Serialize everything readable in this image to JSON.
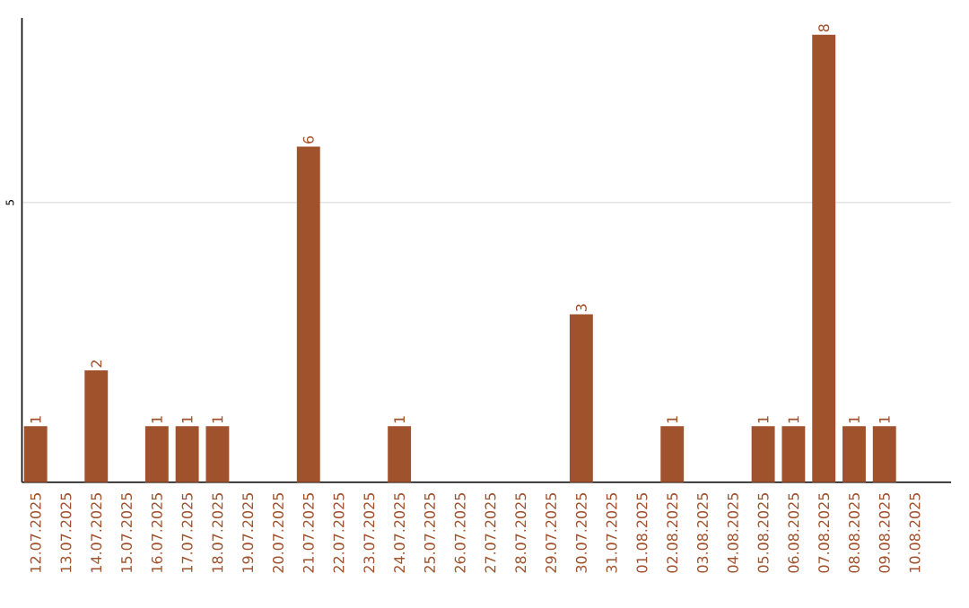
{
  "chart_data": {
    "type": "bar",
    "categories": [
      "12.07.2025",
      "13.07.2025",
      "14.07.2025",
      "15.07.2025",
      "16.07.2025",
      "17.07.2025",
      "18.07.2025",
      "19.07.2025",
      "20.07.2025",
      "21.07.2025",
      "22.07.2025",
      "23.07.2025",
      "24.07.2025",
      "25.07.2025",
      "26.07.2025",
      "27.07.2025",
      "28.07.2025",
      "29.07.2025",
      "30.07.2025",
      "31.07.2025",
      "01.08.2025",
      "02.08.2025",
      "03.08.2025",
      "04.08.2025",
      "05.08.2025",
      "06.08.2025",
      "07.08.2025",
      "08.08.2025",
      "09.08.2025",
      "10.08.2025"
    ],
    "values": [
      1,
      0,
      2,
      0,
      1,
      1,
      1,
      0,
      0,
      6,
      0,
      0,
      1,
      0,
      0,
      0,
      0,
      0,
      3,
      0,
      0,
      1,
      0,
      0,
      1,
      1,
      8,
      1,
      1,
      0
    ],
    "value_labels": [
      "1",
      null,
      "2",
      null,
      "1",
      "1",
      "1",
      null,
      null,
      "6",
      null,
      null,
      "1",
      null,
      null,
      null,
      null,
      null,
      "3",
      null,
      null,
      "1",
      null,
      null,
      "1",
      "1",
      "8",
      "1",
      "1",
      null
    ],
    "color": "#a0522d",
    "ylim": [
      0,
      8.3
    ],
    "yticks": [
      5
    ],
    "grid": "y"
  }
}
